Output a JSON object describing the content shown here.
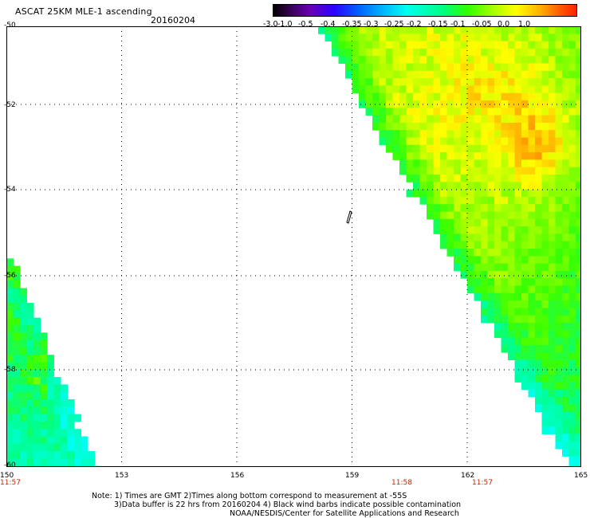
{
  "header": {
    "title": "ASCAT 25KM MLE-1 ascending",
    "date": "20160204"
  },
  "colorbar": {
    "labels": [
      "-3.0",
      "-1.0",
      "-0.5",
      "-0.4",
      "-0.35",
      "-0.3",
      "-0.25",
      "-0.2",
      "-0.15",
      "-0.1",
      "-0.05",
      "0.0",
      "1.0"
    ],
    "colors": [
      "#000000",
      "#3a005a",
      "#6a00b4",
      "#2a00ff",
      "#0060ff",
      "#00b4ff",
      "#00ffee",
      "#00ff80",
      "#30ff00",
      "#a0ff00",
      "#ffff00",
      "#ffb000",
      "#ff6000",
      "#ff2000"
    ]
  },
  "map": {
    "lat_labels": [
      "-50",
      "-52",
      "-54",
      "-56",
      "-58",
      "-60"
    ],
    "lon_labels": [
      "150",
      "153",
      "156",
      "159",
      "162",
      "165"
    ],
    "time_labels": [
      "11:57",
      "11:58",
      "11:57"
    ],
    "lat_range": [
      -60,
      -50
    ],
    "lon_range": [
      150,
      165
    ],
    "wind_barb": "black wind barb near 158.9E, 54.6S"
  },
  "notes": {
    "line1": "Note: 1) Times are GMT 2)Times along bottom correspond to measurement at -55S",
    "line2": "3)Data buffer is 22 hrs from 20160204 4) Black wind barbs indicate possible contamination",
    "line3": "NOAA/NESDIS/Center for Satellite Applications and Research"
  }
}
